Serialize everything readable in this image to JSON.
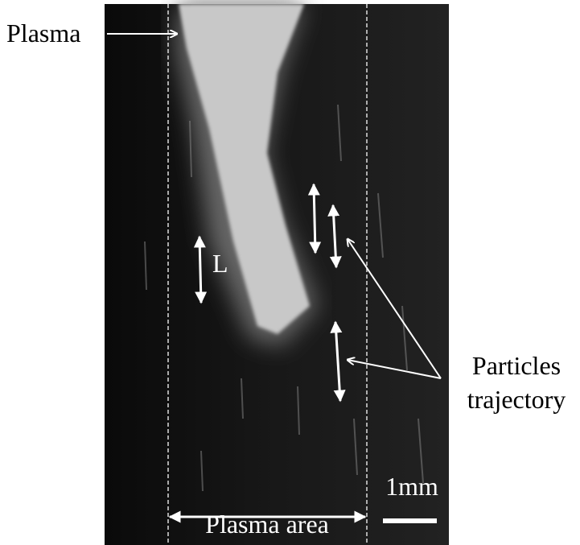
{
  "labels": {
    "plasma": "Plasma",
    "length": "L",
    "particles": [
      "Particles",
      "trajectory"
    ],
    "scale": "1mm",
    "plasma_area": "Plasma area"
  }
}
